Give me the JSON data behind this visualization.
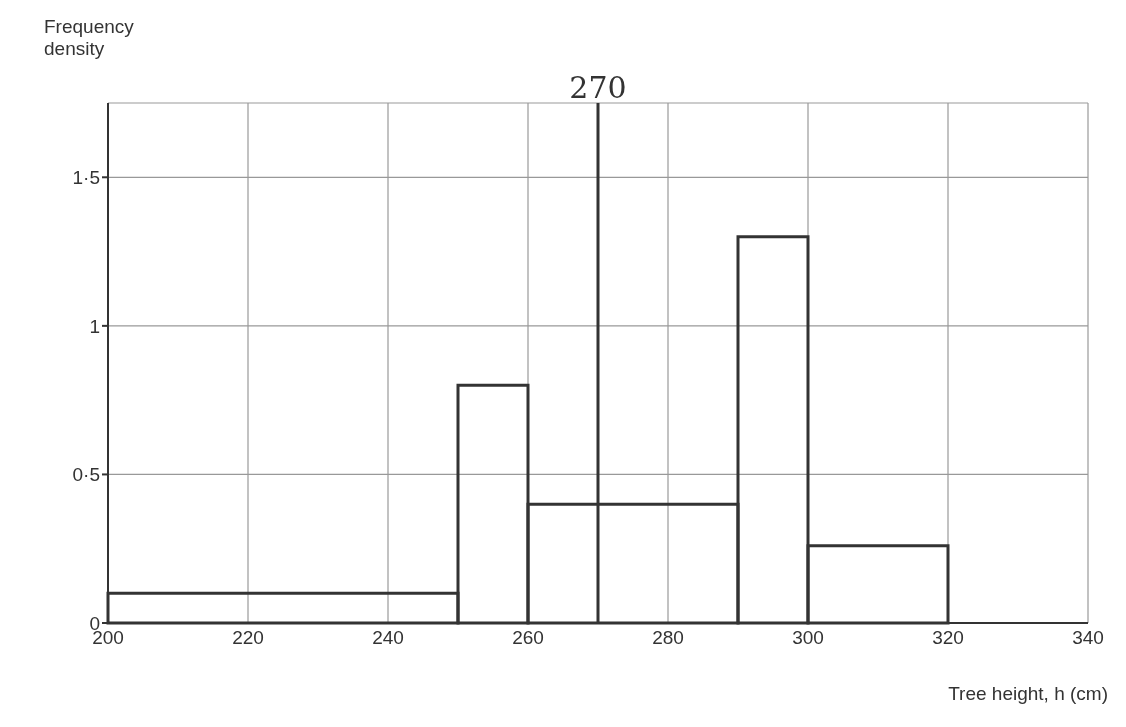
{
  "chart_data": {
    "type": "histogram",
    "xlabel": "Tree height, h (cm)",
    "ylabel": "Frequency density",
    "bins": [
      200,
      250,
      260,
      290,
      300,
      320
    ],
    "values": [
      0.1,
      0.8,
      0.4,
      1.3,
      0.26
    ],
    "color": "#333333",
    "xlim": [
      200,
      340
    ],
    "xticks": [
      200,
      220,
      240,
      260,
      280,
      300,
      320,
      340
    ],
    "ylim": [
      0,
      1.75
    ],
    "yticks": [
      {
        "value": 0,
        "label": "0"
      },
      {
        "value": 0.5,
        "label": "0·5"
      },
      {
        "value": 1,
        "label": "1"
      },
      {
        "value": 1.5,
        "label": "1·5"
      }
    ],
    "grid": true,
    "ref_lines": [
      {
        "axis": "x",
        "value": 270,
        "label": "270",
        "color": "#333333"
      }
    ]
  }
}
